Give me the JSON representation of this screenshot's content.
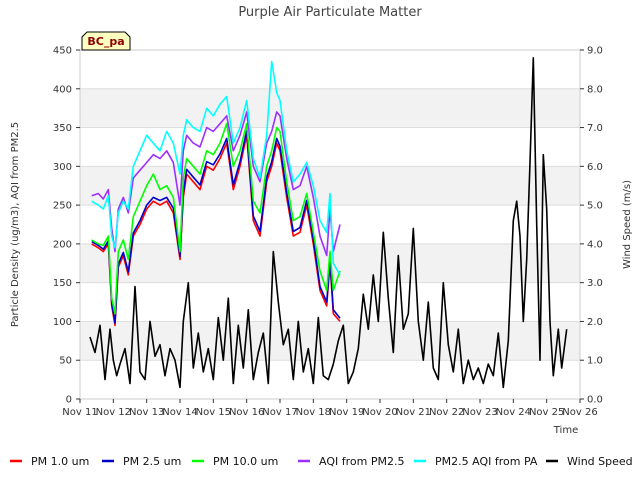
{
  "chart_data": {
    "type": "line",
    "title": "Purple Air Particulate Matter",
    "xlabel": "Time",
    "ylabel": "Particle Density (ug/m3), AQI from PM2.5",
    "y2label": "Wind Speed (m/s)",
    "site_label": "BC_pa",
    "x_unit": "days since Nov 11",
    "x_ticks": [
      "Nov 11",
      "Nov 12",
      "Nov 13",
      "Nov 14",
      "Nov 15",
      "Nov 16",
      "Nov 17",
      "Nov 18",
      "Nov 19",
      "Nov 20",
      "Nov 21",
      "Nov 22",
      "Nov 23",
      "Nov 24",
      "Nov 25",
      "Nov 26"
    ],
    "xlim": [
      0,
      15
    ],
    "ylim": [
      0,
      450
    ],
    "y_ticks": [
      0,
      50,
      100,
      150,
      200,
      250,
      300,
      350,
      400,
      450
    ],
    "y2lim": [
      0,
      9
    ],
    "y2_ticks": [
      "0.0",
      "1.0",
      "2.0",
      "3.0",
      "4.0",
      "5.0",
      "6.0",
      "7.0",
      "8.0",
      "9.0"
    ],
    "grid": "horizontal bands",
    "legend_position": "bottom",
    "series": [
      {
        "name": "PM 1.0 um",
        "color": "#ff0000",
        "axis": "left",
        "x": [
          0.35,
          0.55,
          0.7,
          0.85,
          0.95,
          1.05,
          1.15,
          1.3,
          1.45,
          1.6,
          1.8,
          2.0,
          2.2,
          2.4,
          2.6,
          2.8,
          3.0,
          3.1,
          3.2,
          3.4,
          3.6,
          3.8,
          4.0,
          4.2,
          4.4,
          4.6,
          4.8,
          5.0,
          5.2,
          5.4,
          5.6,
          5.75,
          5.9,
          6.0,
          6.2,
          6.4,
          6.6,
          6.8,
          7.0,
          7.2,
          7.4,
          7.5,
          7.6,
          7.8
        ],
        "y": [
          200,
          195,
          190,
          200,
          120,
          95,
          170,
          185,
          160,
          210,
          225,
          245,
          255,
          250,
          255,
          240,
          180,
          260,
          290,
          280,
          270,
          300,
          295,
          310,
          330,
          270,
          300,
          340,
          230,
          210,
          280,
          300,
          330,
          320,
          260,
          210,
          215,
          250,
          200,
          140,
          120,
          175,
          110,
          100
        ]
      },
      {
        "name": "PM 2.5 um",
        "color": "#0000cd",
        "axis": "left",
        "x": [
          0.35,
          0.55,
          0.7,
          0.85,
          0.95,
          1.05,
          1.15,
          1.3,
          1.45,
          1.6,
          1.8,
          2.0,
          2.2,
          2.4,
          2.6,
          2.8,
          3.0,
          3.1,
          3.2,
          3.4,
          3.6,
          3.8,
          4.0,
          4.2,
          4.4,
          4.6,
          4.8,
          5.0,
          5.2,
          5.4,
          5.6,
          5.75,
          5.9,
          6.0,
          6.2,
          6.4,
          6.6,
          6.8,
          7.0,
          7.2,
          7.4,
          7.5,
          7.6,
          7.8
        ],
        "y": [
          203,
          198,
          193,
          204,
          124,
          98,
          174,
          189,
          164,
          214,
          230,
          250,
          260,
          256,
          260,
          246,
          184,
          266,
          296,
          286,
          276,
          306,
          302,
          316,
          336,
          276,
          306,
          346,
          236,
          216,
          286,
          306,
          336,
          326,
          266,
          216,
          221,
          256,
          206,
          145,
          125,
          180,
          115,
          104
        ]
      },
      {
        "name": "PM 10.0 um",
        "color": "#00ff00",
        "axis": "left",
        "x": [
          0.35,
          0.55,
          0.7,
          0.85,
          0.95,
          1.05,
          1.15,
          1.3,
          1.45,
          1.6,
          1.8,
          2.0,
          2.2,
          2.4,
          2.6,
          2.8,
          3.0,
          3.1,
          3.2,
          3.4,
          3.6,
          3.8,
          4.0,
          4.2,
          4.4,
          4.6,
          4.8,
          5.0,
          5.2,
          5.4,
          5.6,
          5.75,
          5.9,
          6.0,
          6.2,
          6.4,
          6.6,
          6.8,
          7.0,
          7.2,
          7.4,
          7.5,
          7.6,
          7.8
        ],
        "y": [
          205,
          200,
          198,
          210,
          130,
          110,
          190,
          205,
          180,
          235,
          255,
          275,
          290,
          270,
          275,
          260,
          190,
          285,
          310,
          300,
          290,
          320,
          315,
          330,
          355,
          300,
          320,
          355,
          255,
          240,
          300,
          320,
          350,
          345,
          280,
          230,
          235,
          265,
          215,
          165,
          140,
          190,
          140,
          165
        ]
      },
      {
        "name": "AQI from PM2.5",
        "color": "#9b30ff",
        "axis": "left",
        "x": [
          0.35,
          0.55,
          0.7,
          0.85,
          0.95,
          1.05,
          1.15,
          1.3,
          1.45,
          1.6,
          1.8,
          2.0,
          2.2,
          2.4,
          2.6,
          2.8,
          3.0,
          3.1,
          3.2,
          3.4,
          3.6,
          3.8,
          4.0,
          4.2,
          4.4,
          4.6,
          4.8,
          5.0,
          5.2,
          5.4,
          5.6,
          5.75,
          5.9,
          6.0,
          6.2,
          6.4,
          6.6,
          6.8,
          7.0,
          7.2,
          7.4,
          7.5,
          7.6,
          7.8
        ],
        "y": [
          262,
          265,
          258,
          270,
          220,
          190,
          245,
          260,
          240,
          285,
          295,
          305,
          315,
          310,
          320,
          305,
          250,
          320,
          340,
          330,
          325,
          350,
          345,
          355,
          365,
          320,
          340,
          370,
          300,
          280,
          330,
          345,
          370,
          365,
          310,
          270,
          275,
          300,
          260,
          210,
          185,
          245,
          190,
          225
        ]
      },
      {
        "name": "PM2.5 AQI from PA",
        "color": "#00ffff",
        "axis": "left",
        "x": [
          0.35,
          0.55,
          0.7,
          0.85,
          0.95,
          1.05,
          1.15,
          1.3,
          1.45,
          1.6,
          1.8,
          2.0,
          2.2,
          2.4,
          2.6,
          2.8,
          3.0,
          3.1,
          3.2,
          3.4,
          3.6,
          3.8,
          4.0,
          4.2,
          4.4,
          4.6,
          4.8,
          5.0,
          5.2,
          5.4,
          5.6,
          5.75,
          5.9,
          6.0,
          6.2,
          6.4,
          6.6,
          6.8,
          7.0,
          7.2,
          7.4,
          7.5,
          7.6,
          7.8
        ],
        "y": [
          255,
          250,
          245,
          262,
          210,
          195,
          240,
          255,
          245,
          300,
          320,
          340,
          330,
          320,
          345,
          330,
          290,
          340,
          360,
          350,
          345,
          375,
          365,
          380,
          390,
          330,
          350,
          385,
          310,
          285,
          340,
          435,
          395,
          385,
          320,
          280,
          290,
          305,
          275,
          230,
          215,
          265,
          175,
          160
        ]
      },
      {
        "name": "Wind Speed",
        "color": "#000000",
        "axis": "right",
        "x": [
          0.3,
          0.45,
          0.6,
          0.75,
          0.9,
          1.0,
          1.1,
          1.2,
          1.35,
          1.5,
          1.65,
          1.8,
          1.95,
          2.1,
          2.25,
          2.4,
          2.55,
          2.7,
          2.85,
          3.0,
          3.1,
          3.25,
          3.4,
          3.55,
          3.7,
          3.85,
          4.0,
          4.15,
          4.3,
          4.45,
          4.6,
          4.75,
          4.9,
          5.05,
          5.2,
          5.35,
          5.5,
          5.65,
          5.8,
          5.95,
          6.1,
          6.25,
          6.4,
          6.55,
          6.7,
          6.85,
          7.0,
          7.15,
          7.3,
          7.45,
          7.6,
          7.75,
          7.9,
          8.05,
          8.2,
          8.35,
          8.5,
          8.65,
          8.8,
          8.95,
          9.1,
          9.25,
          9.4,
          9.55,
          9.7,
          9.85,
          10.0,
          10.15,
          10.3,
          10.45,
          10.6,
          10.75,
          10.9,
          11.05,
          11.2,
          11.35,
          11.5,
          11.65,
          11.8,
          11.95,
          12.1,
          12.25,
          12.4,
          12.55,
          12.7,
          12.85,
          13.0,
          13.1,
          13.2,
          13.3,
          13.4,
          13.5,
          13.6,
          13.7,
          13.8,
          13.9,
          14.0,
          14.1,
          14.2,
          14.35,
          14.45,
          14.6
        ],
        "y": [
          1.6,
          1.2,
          1.9,
          0.5,
          1.8,
          1.0,
          0.6,
          0.9,
          1.3,
          0.4,
          2.9,
          0.7,
          0.5,
          2.0,
          1.1,
          1.4,
          0.6,
          1.3,
          1.0,
          0.3,
          2.0,
          3.0,
          0.8,
          1.7,
          0.7,
          1.3,
          0.5,
          2.1,
          1.0,
          2.6,
          0.4,
          1.9,
          0.8,
          2.3,
          0.5,
          1.2,
          1.7,
          0.4,
          3.8,
          2.5,
          1.4,
          1.8,
          0.5,
          2.0,
          0.7,
          1.3,
          0.4,
          2.1,
          0.6,
          0.5,
          0.9,
          1.5,
          1.9,
          0.4,
          0.7,
          1.3,
          2.7,
          1.8,
          3.2,
          2.0,
          4.3,
          2.6,
          1.2,
          3.7,
          1.8,
          2.2,
          4.4,
          2.0,
          1.0,
          2.5,
          0.8,
          0.5,
          3.0,
          1.4,
          0.7,
          1.8,
          0.4,
          1.0,
          0.5,
          0.8,
          0.4,
          0.9,
          0.6,
          1.7,
          0.3,
          1.5,
          4.6,
          5.1,
          4.2,
          2.0,
          3.6,
          6.1,
          8.8,
          4.5,
          1.0,
          6.3,
          4.9,
          2.0,
          0.6,
          1.8,
          0.8,
          1.8
        ]
      }
    ]
  }
}
